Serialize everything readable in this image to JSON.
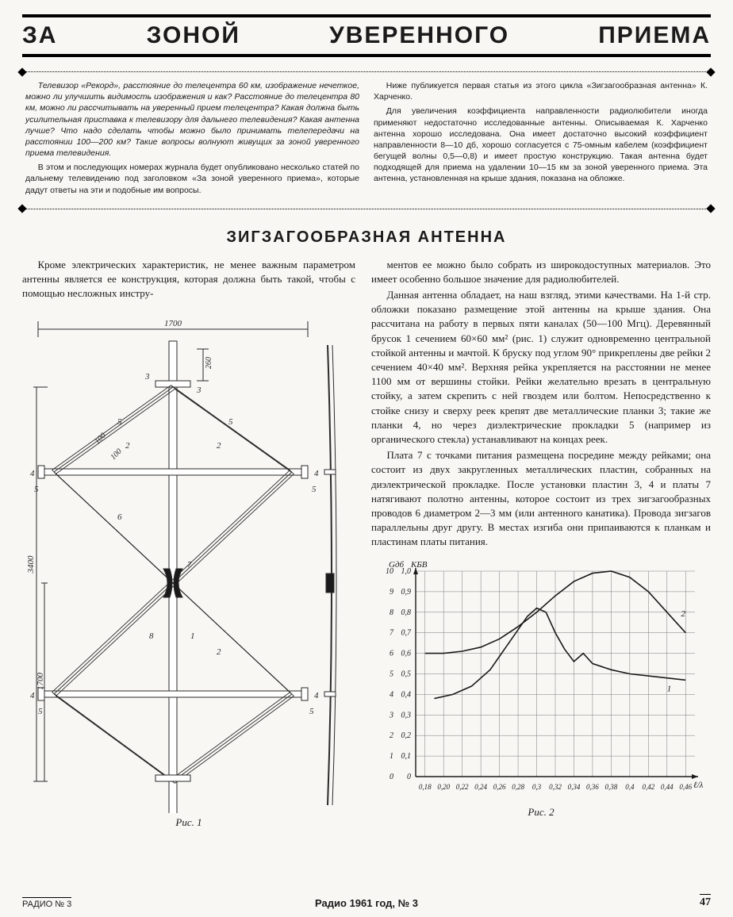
{
  "banner": "ЗА ЗОНОЙ УВЕРЕННОГО ПРИЕМА",
  "intro": {
    "left": [
      "Телевизор «Рекорд», расстояние до телецентра 60 км, изображение нечеткое, можно ли улучшить видимость изображения и как? Расстояние до телецентра 80 км, можно ли рассчитывать на уверенный прием телецентра? Какая должна быть усилительная приставка к телевизору для дальнего телевидения? Какая антенна лучше? Что надо сделать чтобы можно было принимать телепередачи на расстоянии 100—200 км? Такие вопросы волнуют живущих за зоной уверенного приема телевидения.",
      "В этом и последующих номерах журнала будет опубликовано несколько статей по дальнему телевидению под заголовком «За зоной уверенного приема», которые дадут ответы на эти и подобные им вопросы."
    ],
    "right": [
      "Ниже публикуется первая статья из этого цикла «Зигзагообразная антенна» К. Харченко.",
      "Для увеличения коэффициента направленности радиолюбители иногда применяют недостаточно исследованные антенны. Описываемая К. Харченко антенна хорошо исследована. Она имеет достаточно высокий коэффициент направленности 8—10 дб, хорошо согласуется с 75-омным кабелем (коэффициент бегущей волны 0,5—0,8) и имеет простую конструкцию. Такая антенна будет подходящей для приема на удалении 10—15 км за зоной уверенного приема. Эта антенна, установленная на крыше здания, показана на обложке."
    ]
  },
  "article_title": "ЗИГЗАГООБРАЗНАЯ АНТЕННА",
  "body": {
    "left_intro": "Кроме электрических характеристик, не менее важным параметром антенны является ее конструкция, которая должна быть такой, чтобы с помощью несложных инстру-",
    "right_paras": [
      "ментов ее можно было собрать из широкодоступных материалов. Это имеет особенно большое значение для радиолюбителей.",
      "Данная антенна обладает, на наш взгляд, этими качествами. На 1-й стр. обложки показано размещение этой антенны на крыше здания. Она рассчитана на работу в первых пяти каналах (50—100 Мгц). Деревянный брусок 1 сечением 60×60 мм² (рис. 1) служит одновременно центральной стойкой антенны и мачтой. К бруску под углом 90° прикреплены две рейки 2 сечением 40×40 мм². Верхняя рейка укрепляется на расстоянии не менее 1100 мм от вершины стойки. Рейки желательно врезать в центральную стойку, а затем скрепить с ней гвоздем или болтом. Непосредственно к стойке снизу и сверху реек крепят две металлические планки 3; такие же планки 4, но через диэлектрические прокладки 5 (например из органического стекла) устанавливают на концах реек.",
      "Плата 7 с точками питания размещена посредине между рейками; она состоит из двух закругленных металлических пластин, собранных на диэлектрической прокладке. После установки пластин 3, 4 и платы 7 натягивают полотно антенны, которое состоит из трех зигзагообразных проводов 6 диаметром 2—3 мм (или антенного канатика). Провода зигзагов параллельны друг другу. В местах изгиба они припаиваются к планкам и пластинам платы питания."
    ]
  },
  "fig1": {
    "caption": "Рис. 1",
    "dims": {
      "top_width": "1700",
      "upper_offset": "260",
      "diag_100a": "100",
      "diag_100b": "100",
      "height_half": "1700",
      "height_full": "3400"
    },
    "labels": [
      "1",
      "2",
      "3",
      "4",
      "5",
      "6",
      "7",
      "8"
    ],
    "stroke": "#2a2a2a",
    "bg": "#f8f7f4"
  },
  "chart": {
    "caption": "Рис. 2",
    "background": "#f8f7f4",
    "grid_color": "#7a7a7a",
    "axis_color": "#1a1a1a",
    "line_color": "#1a1a1a",
    "y1_label": "Gдб",
    "y2_label": "КБВ",
    "x_label": "ℓ/λ",
    "y1_ticks": [
      0,
      1,
      2,
      3,
      4,
      5,
      6,
      7,
      8,
      9,
      10
    ],
    "y2_ticks": [
      "0",
      "0,1",
      "0,2",
      "0,3",
      "0,4",
      "0,5",
      "0,6",
      "0,7",
      "0,8",
      "0,9",
      "1,0"
    ],
    "x_ticks": [
      "0,18",
      "0,20",
      "0,22",
      "0,24",
      "0,26",
      "0,28",
      "0,3",
      "0,32",
      "0,34",
      "0,36",
      "0,38",
      "0,4",
      "0,42",
      "0,44",
      "0,46"
    ],
    "xlim": [
      0.17,
      0.47
    ],
    "series1": {
      "name": "1",
      "points": [
        [
          0.19,
          0.38
        ],
        [
          0.21,
          0.4
        ],
        [
          0.23,
          0.44
        ],
        [
          0.25,
          0.52
        ],
        [
          0.27,
          0.65
        ],
        [
          0.29,
          0.78
        ],
        [
          0.3,
          0.82
        ],
        [
          0.31,
          0.8
        ],
        [
          0.32,
          0.7
        ],
        [
          0.33,
          0.62
        ],
        [
          0.34,
          0.56
        ],
        [
          0.35,
          0.6
        ],
        [
          0.36,
          0.55
        ],
        [
          0.38,
          0.52
        ],
        [
          0.4,
          0.5
        ],
        [
          0.42,
          0.49
        ],
        [
          0.44,
          0.48
        ],
        [
          0.46,
          0.47
        ]
      ]
    },
    "series2": {
      "name": "2",
      "points": [
        [
          0.18,
          0.6
        ],
        [
          0.2,
          0.6
        ],
        [
          0.22,
          0.61
        ],
        [
          0.24,
          0.63
        ],
        [
          0.26,
          0.67
        ],
        [
          0.28,
          0.73
        ],
        [
          0.3,
          0.8
        ],
        [
          0.32,
          0.88
        ],
        [
          0.34,
          0.95
        ],
        [
          0.36,
          0.99
        ],
        [
          0.38,
          1.0
        ],
        [
          0.4,
          0.97
        ],
        [
          0.42,
          0.9
        ],
        [
          0.44,
          0.8
        ],
        [
          0.46,
          0.7
        ]
      ]
    }
  },
  "footer": {
    "left": "РАДИО № 3",
    "center": "Радио 1961 год, № 3",
    "page": "47"
  }
}
